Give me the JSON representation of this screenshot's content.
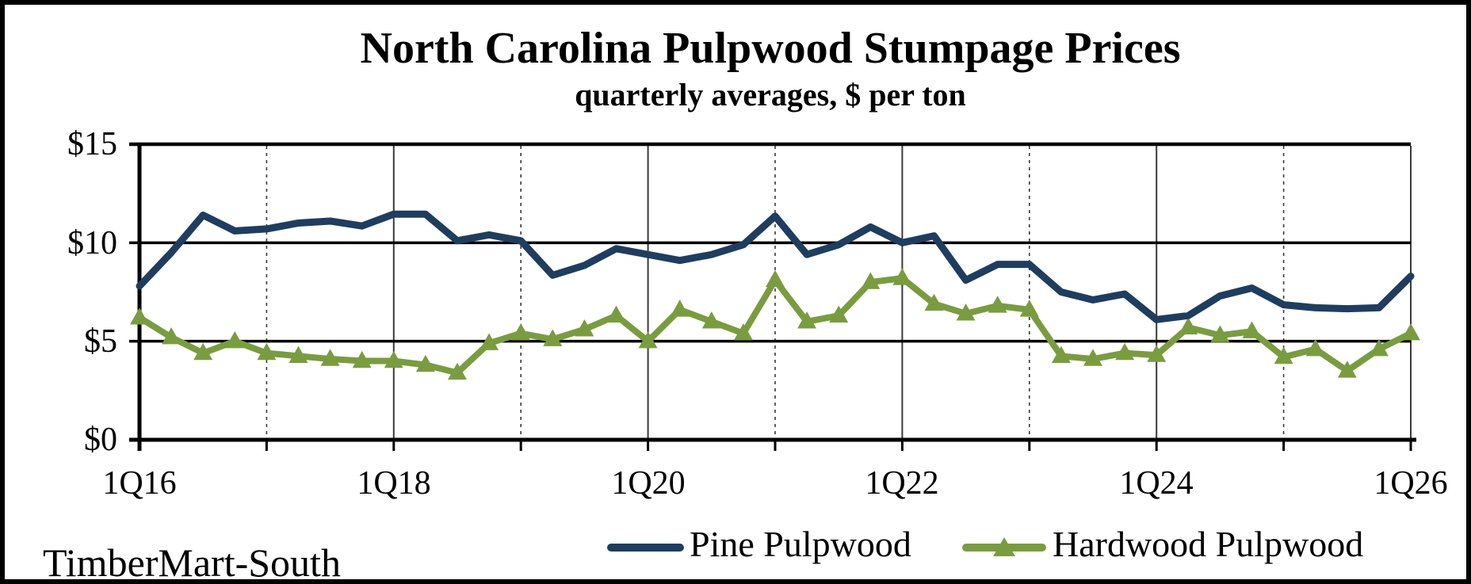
{
  "figure": {
    "title": "North Carolina Pulpwood Stumpage Prices",
    "subtitle": "quarterly averages, $ per ton",
    "source_label": "TimberMart-South"
  },
  "colors": {
    "pine": "#1f3d5f",
    "hardwood": "#7a9c40",
    "axis": "#000000",
    "gridline": "#3a3a3a",
    "text": "#000000",
    "background": "#ffffff"
  },
  "y_axis": {
    "tick_labels": [
      "$0",
      "$5",
      "$10",
      "$15"
    ],
    "min": 0,
    "max": 15,
    "step": 5
  },
  "x_axis": {
    "tick_labels": [
      "1Q16",
      "1Q18",
      "1Q20",
      "1Q22",
      "1Q24",
      "1Q26"
    ],
    "minor_ticks": "every year",
    "major_labels": "every 2 years"
  },
  "legend": [
    {
      "label": "Pine Pulpwood",
      "series": "pine",
      "marker": "line"
    },
    {
      "label": "Hardwood Pulpwood",
      "series": "hardwood",
      "marker": "line-with-triangle"
    }
  ],
  "chart_data": {
    "type": "line",
    "title": "North Carolina Pulpwood Stumpage Prices",
    "subtitle": "quarterly averages, $ per ton",
    "ylabel": "$ per ton",
    "ylim": [
      0,
      15
    ],
    "y_tick_step": 5,
    "grid": {
      "horizontal": "solid black lines at $5 and $10; $15 top border and $0 axis",
      "vertical": "yearly gridlines: dashed on odd years (1Q17,1Q19,1Q21,1Q23,1Q25), thin solid on even years (1Q18,1Q20,1Q22,1Q24,1Q26)"
    },
    "legend_position": "bottom-right",
    "source_label": "TimberMart-South",
    "categories": [
      "1Q16",
      "2Q16",
      "3Q16",
      "4Q16",
      "1Q17",
      "2Q17",
      "3Q17",
      "4Q17",
      "1Q18",
      "2Q18",
      "3Q18",
      "4Q18",
      "1Q19",
      "2Q19",
      "3Q19",
      "4Q19",
      "1Q20",
      "2Q20",
      "3Q20",
      "4Q20",
      "1Q21",
      "2Q21",
      "3Q21",
      "4Q21",
      "1Q22",
      "2Q22",
      "3Q22",
      "4Q22",
      "1Q23",
      "2Q23",
      "3Q23",
      "4Q23",
      "1Q24",
      "2Q24",
      "3Q24",
      "4Q24",
      "1Q25",
      "2Q25",
      "3Q25",
      "4Q25",
      "1Q26"
    ],
    "series": [
      {
        "name": "Pine Pulpwood",
        "color": "#1f3d5f",
        "marker": "none",
        "values": [
          7.8,
          9.5,
          11.4,
          10.6,
          10.7,
          11.0,
          11.1,
          10.85,
          11.45,
          11.45,
          10.1,
          10.4,
          10.1,
          8.35,
          8.85,
          9.7,
          9.4,
          9.1,
          9.4,
          9.9,
          11.35,
          9.4,
          9.9,
          10.8,
          10.0,
          10.35,
          8.1,
          8.9,
          8.9,
          7.5,
          7.1,
          7.4,
          6.1,
          6.3,
          7.3,
          7.7,
          6.85,
          6.7,
          6.65,
          6.7,
          8.3
        ]
      },
      {
        "name": "Hardwood Pulpwood",
        "color": "#7a9c40",
        "marker": "triangle",
        "values": [
          6.2,
          5.2,
          4.4,
          5.0,
          4.4,
          4.25,
          4.1,
          4.0,
          4.0,
          3.8,
          3.4,
          4.9,
          5.4,
          5.1,
          5.6,
          6.3,
          5.0,
          6.6,
          6.0,
          5.4,
          8.1,
          6.0,
          6.3,
          8.0,
          8.2,
          6.9,
          6.4,
          6.8,
          6.6,
          4.25,
          4.1,
          4.4,
          4.3,
          5.7,
          5.3,
          5.5,
          4.2,
          4.6,
          3.5,
          4.6,
          5.4
        ]
      }
    ]
  }
}
